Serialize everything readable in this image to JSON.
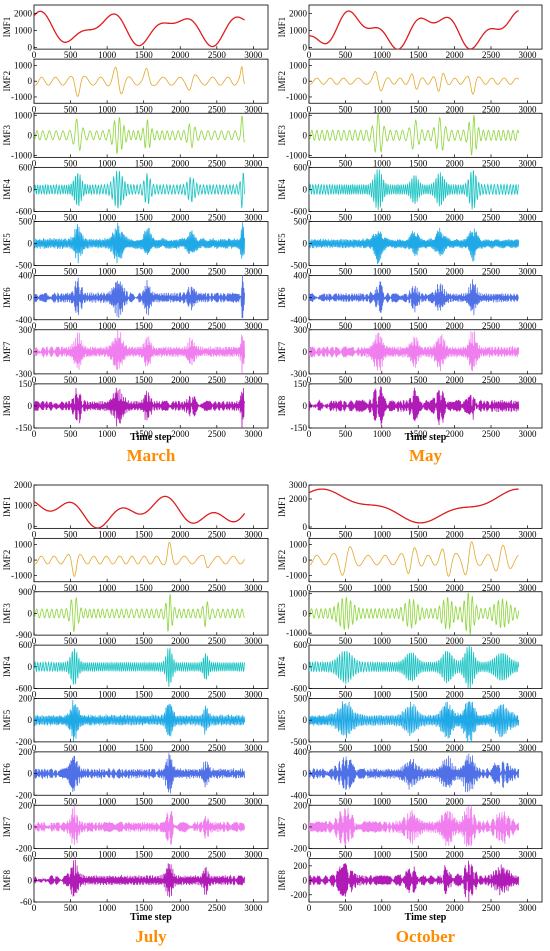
{
  "chart_data": [
    {
      "type": "line",
      "title": "March",
      "xlabel": "Time step",
      "x_range": [
        0,
        2880
      ],
      "sample_step": 5,
      "series": [
        {
          "name": "IMF1",
          "color": "#DD1E1E",
          "yticks": [
            0,
            1000,
            2000
          ],
          "ylim": [
            -100,
            2500
          ],
          "values": []
        },
        {
          "name": "IMF2",
          "color": "#E2A829",
          "yticks": [
            -1000,
            0,
            1000
          ],
          "ylim": [
            -1400,
            1400
          ],
          "values": []
        },
        {
          "name": "IMF3",
          "color": "#8CD53A",
          "yticks": [
            -1000,
            0,
            1000
          ],
          "ylim": [
            -1100,
            1100
          ],
          "values": []
        },
        {
          "name": "IMF4",
          "color": "#18C2C2",
          "yticks": [
            -600,
            0,
            600
          ],
          "ylim": [
            -600,
            600
          ],
          "values": []
        },
        {
          "name": "IMF5",
          "color": "#1FA9E6",
          "yticks": [
            -500,
            0,
            500
          ],
          "ylim": [
            -500,
            500
          ],
          "values": []
        },
        {
          "name": "IMF6",
          "color": "#4F70E6",
          "yticks": [
            -400,
            -200,
            0,
            200,
            400
          ],
          "ylim": [
            -400,
            400
          ],
          "values": []
        },
        {
          "name": "IMF7",
          "color": "#F07EEF",
          "yticks": [
            -300,
            0,
            300
          ],
          "ylim": [
            -300,
            300
          ],
          "values": []
        },
        {
          "name": "IMF8",
          "color": "#B01AB6",
          "yticks": [
            -150,
            -100,
            -50,
            0,
            50,
            100,
            150
          ],
          "ylim": [
            -150,
            150
          ],
          "values": []
        }
      ]
    },
    {
      "type": "line",
      "title": "May",
      "xlabel": "Time step",
      "x_range": [
        0,
        2880
      ],
      "sample_step": 5,
      "series": [
        {
          "name": "IMF1",
          "color": "#DD1E1E",
          "yticks": [
            0,
            1000,
            2000
          ],
          "ylim": [
            -100,
            2500
          ],
          "values": []
        },
        {
          "name": "IMF2",
          "color": "#E2A829",
          "yticks": [
            -1000,
            0,
            1000
          ],
          "ylim": [
            -1400,
            1400
          ],
          "values": []
        },
        {
          "name": "IMF3",
          "color": "#8CD53A",
          "yticks": [
            -1000,
            0,
            1000
          ],
          "ylim": [
            -1100,
            1100
          ],
          "values": []
        },
        {
          "name": "IMF4",
          "color": "#18C2C2",
          "yticks": [
            -600,
            0,
            600
          ],
          "ylim": [
            -600,
            600
          ],
          "values": []
        },
        {
          "name": "IMF5",
          "color": "#1FA9E6",
          "yticks": [
            -500,
            0,
            500
          ],
          "ylim": [
            -500,
            500
          ],
          "values": []
        },
        {
          "name": "IMF6",
          "color": "#4F70E6",
          "yticks": [
            -400,
            -200,
            0,
            200,
            400
          ],
          "ylim": [
            -400,
            400
          ],
          "values": []
        },
        {
          "name": "IMF7",
          "color": "#F07EEF",
          "yticks": [
            -300,
            0,
            300
          ],
          "ylim": [
            -300,
            300
          ],
          "values": []
        },
        {
          "name": "IMF8",
          "color": "#B01AB6",
          "yticks": [
            -150,
            -100,
            -50,
            0,
            50,
            100,
            150
          ],
          "ylim": [
            -150,
            150
          ],
          "values": []
        }
      ]
    },
    {
      "type": "line",
      "title": "July",
      "xlabel": "Time step",
      "x_range": [
        0,
        2880
      ],
      "sample_step": 5,
      "series": [
        {
          "name": "IMF1",
          "color": "#DD1E1E",
          "yticks": [
            0,
            500,
            1000,
            1500,
            2000
          ],
          "ylim": [
            -100,
            2000
          ],
          "values": []
        },
        {
          "name": "IMF2",
          "color": "#E2A829",
          "yticks": [
            -1000,
            0,
            1000
          ],
          "ylim": [
            -1400,
            1400
          ],
          "values": []
        },
        {
          "name": "IMF3",
          "color": "#8CD53A",
          "yticks": [
            -900,
            0,
            900
          ],
          "ylim": [
            -900,
            900
          ],
          "values": []
        },
        {
          "name": "IMF4",
          "color": "#18C2C2",
          "yticks": [
            -600,
            0,
            600
          ],
          "ylim": [
            -600,
            600
          ],
          "values": []
        },
        {
          "name": "IMF5",
          "color": "#1FA9E6",
          "yticks": [
            -200,
            0,
            200
          ],
          "ylim": [
            -200,
            200
          ],
          "values": []
        },
        {
          "name": "IMF6",
          "color": "#4F70E6",
          "yticks": [
            -200,
            0,
            200
          ],
          "ylim": [
            -200,
            200
          ],
          "values": []
        },
        {
          "name": "IMF7",
          "color": "#F07EEF",
          "yticks": [
            -200,
            0,
            200
          ],
          "ylim": [
            -200,
            200
          ],
          "values": []
        },
        {
          "name": "IMF8",
          "color": "#B01AB6",
          "yticks": [
            -60,
            -30,
            0,
            30,
            60
          ],
          "ylim": [
            -60,
            60
          ],
          "values": []
        }
      ]
    },
    {
      "type": "line",
      "title": "October",
      "xlabel": "Time step",
      "x_range": [
        0,
        2880
      ],
      "sample_step": 5,
      "series": [
        {
          "name": "IMF1",
          "color": "#DD1E1E",
          "yticks": [
            0,
            1000,
            2000,
            3000
          ],
          "ylim": [
            -100,
            3000
          ],
          "values": []
        },
        {
          "name": "IMF2",
          "color": "#E2A829",
          "yticks": [
            -1000,
            0,
            1000
          ],
          "ylim": [
            -1400,
            1400
          ],
          "values": []
        },
        {
          "name": "IMF3",
          "color": "#8CD53A",
          "yticks": [
            -1000,
            0,
            1000
          ],
          "ylim": [
            -1100,
            1100
          ],
          "values": []
        },
        {
          "name": "IMF4",
          "color": "#18C2C2",
          "yticks": [
            -600,
            0,
            600
          ],
          "ylim": [
            -600,
            600
          ],
          "values": []
        },
        {
          "name": "IMF5",
          "color": "#1FA9E6",
          "yticks": [
            -500,
            0,
            500
          ],
          "ylim": [
            -500,
            500
          ],
          "values": []
        },
        {
          "name": "IMF6",
          "color": "#4F70E6",
          "yticks": [
            -400,
            -200,
            0,
            200,
            400
          ],
          "ylim": [
            -400,
            400
          ],
          "values": []
        },
        {
          "name": "IMF7",
          "color": "#F07EEF",
          "yticks": [
            -200,
            0,
            200
          ],
          "ylim": [
            -200,
            200
          ],
          "values": []
        },
        {
          "name": "IMF8",
          "color": "#B01AB6",
          "yticks": [
            -200,
            0,
            200
          ],
          "ylim": [
            -300,
            300
          ],
          "values": []
        }
      ]
    }
  ],
  "x_ticks": [
    0,
    500,
    1000,
    1500,
    2000,
    2500,
    3000
  ],
  "title_color": "#FF8C00"
}
